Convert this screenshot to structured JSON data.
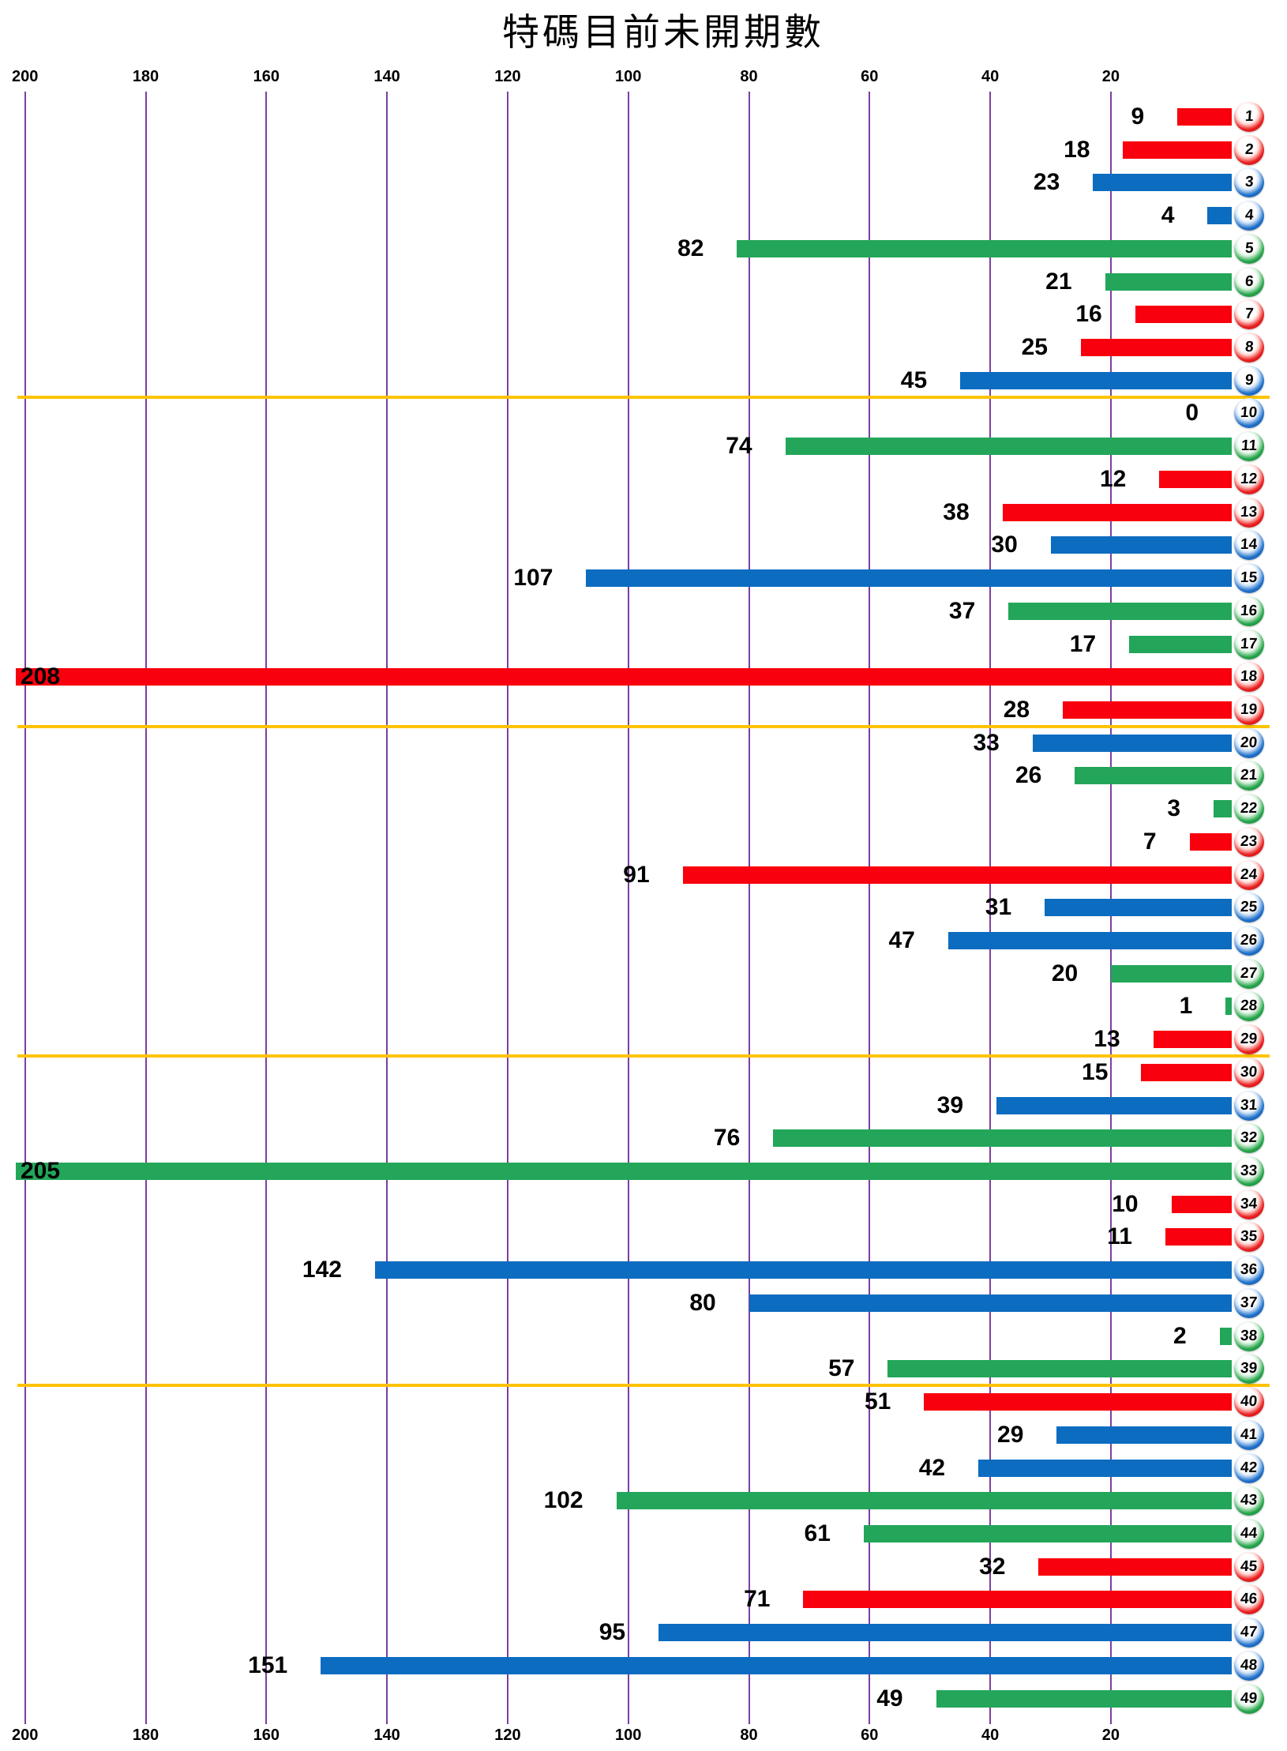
{
  "title": "特碼目前未開期數",
  "colors": {
    "red": "#F8000D",
    "blue": "#0C6CC0",
    "green": "#23A65A",
    "gridline": "#7B3FA0",
    "separator": "#FFC303",
    "label": "#000000"
  },
  "axis": {
    "top_ticks": [
      "200",
      "180",
      "160",
      "140",
      "120",
      "100",
      "80",
      "60",
      "40",
      "20"
    ],
    "bottom_ticks": [
      "200",
      "180",
      "160",
      "140",
      "120",
      "100",
      "80",
      "60",
      "40",
      "20"
    ]
  },
  "chart_data": {
    "type": "bar",
    "orientation": "horizontal",
    "title": "特碼目前未開期數",
    "xlabel": "",
    "ylabel": "",
    "xlim": [
      0,
      200
    ],
    "x_ticks": [
      200,
      180,
      160,
      140,
      120,
      100,
      80,
      60,
      40,
      20
    ],
    "grid": true,
    "categories": [
      1,
      2,
      3,
      4,
      5,
      6,
      7,
      8,
      9,
      10,
      11,
      12,
      13,
      14,
      15,
      16,
      17,
      18,
      19,
      20,
      21,
      22,
      23,
      24,
      25,
      26,
      27,
      28,
      29,
      30,
      31,
      32,
      33,
      34,
      35,
      36,
      37,
      38,
      39,
      40,
      41,
      42,
      43,
      44,
      45,
      46,
      47,
      48,
      49
    ],
    "values": [
      9,
      18,
      23,
      4,
      82,
      21,
      16,
      25,
      45,
      0,
      74,
      12,
      38,
      30,
      107,
      37,
      17,
      208,
      28,
      33,
      26,
      3,
      7,
      91,
      31,
      47,
      20,
      1,
      13,
      15,
      39,
      76,
      205,
      10,
      11,
      142,
      80,
      2,
      57,
      51,
      29,
      42,
      102,
      61,
      32,
      71,
      95,
      151,
      49
    ],
    "bar_colors": [
      "red",
      "red",
      "blue",
      "blue",
      "green",
      "green",
      "red",
      "red",
      "blue",
      "blue",
      "green",
      "red",
      "red",
      "blue",
      "blue",
      "green",
      "green",
      "red",
      "red",
      "blue",
      "green",
      "green",
      "red",
      "red",
      "blue",
      "blue",
      "green",
      "green",
      "red",
      "red",
      "blue",
      "green",
      "green",
      "red",
      "red",
      "blue",
      "blue",
      "green",
      "green",
      "red",
      "blue",
      "blue",
      "green",
      "green",
      "red",
      "red",
      "blue",
      "blue",
      "green"
    ],
    "group_separators_after": [
      9,
      19,
      29,
      39
    ],
    "note_clipped_bars": [
      18,
      33
    ]
  }
}
